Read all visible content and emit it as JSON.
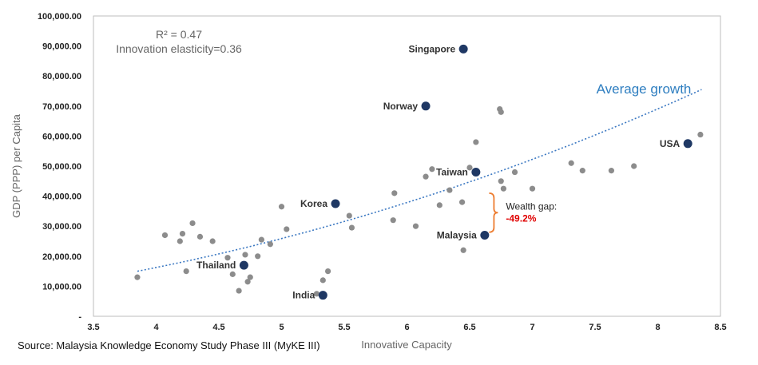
{
  "chart_data": {
    "type": "scatter",
    "xlabel": "Innovative Capacity",
    "ylabel": "GDP (PPP) per Capita",
    "xlim": [
      3.5,
      8.5
    ],
    "ylim": [
      0,
      100000
    ],
    "x_ticks": [
      "3.5",
      "4",
      "4.5",
      "5",
      "5.5",
      "6",
      "6.5",
      "7",
      "7.5",
      "8",
      "8.5"
    ],
    "y_ticks": [
      "-",
      "10,000.00",
      "20,000.00",
      "30,000.00",
      "40,000.00",
      "50,000.00",
      "60,000.00",
      "70,000.00",
      "80,000.00",
      "90,000.00",
      "100,000.00"
    ],
    "stats": {
      "r2": "R² = 0.47",
      "elasticity": "Innovation elasticity=0.36"
    },
    "trend_label": "Average growth",
    "trend": {
      "type": "power",
      "coef": 15000,
      "x0": 3.85,
      "x1": 8.35,
      "end_value": 75500
    },
    "gap_annotation": {
      "label": "Wealth gap:",
      "value": "-49.2%",
      "x": 6.7,
      "y_top": 41000,
      "y_bottom": 28000
    },
    "highlighted": [
      {
        "name": "Singapore",
        "x": 6.45,
        "y": 89000
      },
      {
        "name": "Norway",
        "x": 6.15,
        "y": 70000
      },
      {
        "name": "Taiwan",
        "x": 6.55,
        "y": 48000
      },
      {
        "name": "USA",
        "x": 8.24,
        "y": 57500
      },
      {
        "name": "Korea",
        "x": 5.43,
        "y": 37500
      },
      {
        "name": "Malaysia",
        "x": 6.62,
        "y": 27000
      },
      {
        "name": "Thailand",
        "x": 4.7,
        "y": 17000
      },
      {
        "name": "India",
        "x": 5.33,
        "y": 7000
      }
    ],
    "others": [
      [
        3.85,
        13000
      ],
      [
        4.07,
        27000
      ],
      [
        4.19,
        25000
      ],
      [
        4.21,
        27500
      ],
      [
        4.24,
        15000
      ],
      [
        4.29,
        31000
      ],
      [
        4.35,
        26500
      ],
      [
        4.45,
        25000
      ],
      [
        4.57,
        19500
      ],
      [
        4.61,
        14000
      ],
      [
        4.66,
        8500
      ],
      [
        4.71,
        20500
      ],
      [
        4.73,
        11500
      ],
      [
        4.75,
        13000
      ],
      [
        4.81,
        20000
      ],
      [
        4.84,
        25500
      ],
      [
        4.91,
        24000
      ],
      [
        5.0,
        36500
      ],
      [
        5.04,
        29000
      ],
      [
        5.28,
        7500
      ],
      [
        5.33,
        12000
      ],
      [
        5.37,
        15000
      ],
      [
        5.54,
        33500
      ],
      [
        5.56,
        29500
      ],
      [
        5.89,
        32000
      ],
      [
        5.9,
        41000
      ],
      [
        6.07,
        30000
      ],
      [
        6.15,
        46500
      ],
      [
        6.2,
        49000
      ],
      [
        6.26,
        37000
      ],
      [
        6.34,
        42000
      ],
      [
        6.44,
        38000
      ],
      [
        6.45,
        22000
      ],
      [
        6.5,
        49500
      ],
      [
        6.55,
        58000
      ],
      [
        6.74,
        69000
      ],
      [
        6.75,
        68000
      ],
      [
        6.75,
        45000
      ],
      [
        6.77,
        42500
      ],
      [
        6.86,
        48000
      ],
      [
        7.0,
        42500
      ],
      [
        7.31,
        51000
      ],
      [
        7.4,
        48500
      ],
      [
        7.63,
        48500
      ],
      [
        7.81,
        50000
      ],
      [
        8.34,
        60500
      ]
    ]
  },
  "source": "Source: Malaysia Knowledge Economy Study Phase III (MyKE III)"
}
